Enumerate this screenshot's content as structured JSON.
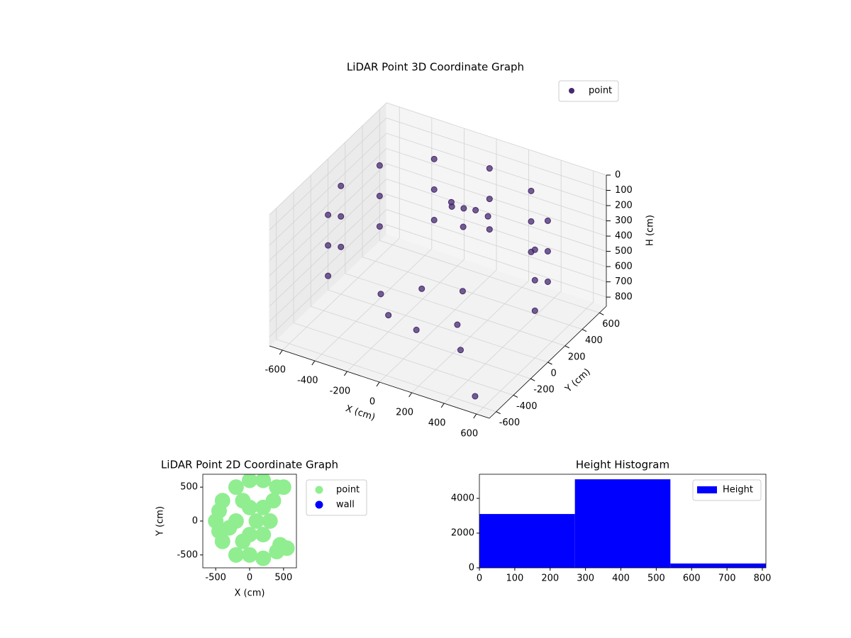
{
  "chart_data": [
    {
      "type": "scatter3d",
      "title": "LiDAR Point 3D Coordinate Graph",
      "xlabel": "X (cm)",
      "ylabel": "Y (cm)",
      "zlabel": "H (cm)",
      "xlim": [
        -680,
        680
      ],
      "ylim": [
        -680,
        680
      ],
      "zlim": [
        860,
        0
      ],
      "xticks": [
        -600,
        -400,
        -200,
        0,
        200,
        400,
        600
      ],
      "yticks": [
        -600,
        -400,
        -200,
        0,
        200,
        400,
        600
      ],
      "zticks": [
        0,
        100,
        200,
        300,
        400,
        500,
        600,
        700,
        800
      ],
      "grid": true,
      "legend": "upper right",
      "series": [
        {
          "name": "point",
          "color": "#46296e",
          "x": [
            600,
            520,
            300,
            0,
            -300,
            -520,
            -600,
            -520,
            600,
            520,
            300,
            0,
            -300,
            -520,
            -600,
            -520,
            600,
            520,
            300,
            0,
            -300,
            -520,
            -600,
            -520,
            0,
            100,
            -100,
            50,
            150,
            -50,
            -300,
            -200,
            0,
            200,
            -100,
            300,
            100,
            560
          ],
          "y": [
            0,
            300,
            520,
            600,
            520,
            300,
            0,
            -300,
            0,
            300,
            520,
            600,
            520,
            300,
            0,
            -300,
            0,
            300,
            520,
            600,
            520,
            300,
            0,
            -300,
            300,
            250,
            350,
            200,
            300,
            250,
            -100,
            -200,
            -250,
            -150,
            0,
            -300,
            100,
            -620
          ],
          "z": [
            150,
            150,
            150,
            150,
            150,
            150,
            150,
            150,
            350,
            350,
            350,
            350,
            350,
            350,
            350,
            350,
            550,
            550,
            550,
            550,
            550,
            550,
            550,
            550,
            250,
            200,
            300,
            300,
            250,
            200,
            700,
            750,
            750,
            700,
            650,
            750,
            650,
            790
          ]
        }
      ]
    },
    {
      "type": "scatter",
      "title": "LiDAR Point 2D Coordinate Graph",
      "xlabel": "X (cm)",
      "ylabel": "Y (cm)",
      "xlim": [
        -690,
        690
      ],
      "ylim": [
        -690,
        690
      ],
      "xticks": [
        -500,
        0,
        500
      ],
      "yticks": [
        -500,
        0,
        500
      ],
      "legend": "outside right",
      "series": [
        {
          "name": "point",
          "color": "#90ee90",
          "x": [
            -500,
            -400,
            -400,
            -200,
            -200,
            0,
            0,
            200,
            200,
            400,
            400,
            -200,
            0,
            0,
            200,
            200,
            -300,
            -100,
            -100,
            300,
            450,
            550,
            500,
            100,
            350,
            -450,
            -450
          ],
          "y": [
            0,
            300,
            -300,
            500,
            -500,
            600,
            -500,
            600,
            -550,
            500,
            -450,
            0,
            200,
            -200,
            200,
            -200,
            -100,
            300,
            -300,
            0,
            -350,
            -400,
            500,
            0,
            300,
            150,
            -150
          ]
        },
        {
          "name": "wall",
          "color": "#0000ff",
          "x": [],
          "y": []
        }
      ]
    },
    {
      "type": "histogram",
      "title": "Height Histogram",
      "bins": [
        0,
        270,
        540,
        810
      ],
      "values": [
        3100,
        5100,
        250
      ],
      "xlim": [
        0,
        810
      ],
      "ylim": [
        0,
        5390
      ],
      "xticks": [
        0,
        100,
        200,
        300,
        400,
        500,
        600,
        700,
        800
      ],
      "yticks": [
        0,
        2000,
        4000
      ],
      "legend": "upper right",
      "series_name": "Height",
      "color": "#0000ff"
    }
  ]
}
